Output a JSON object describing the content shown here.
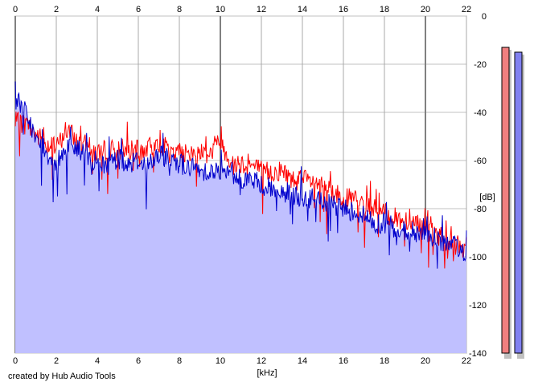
{
  "chart_data": {
    "type": "area",
    "xlabel": "[kHz]",
    "ylabel": "[dB]",
    "xlim": [
      0,
      22
    ],
    "ylim": [
      -140,
      0
    ],
    "x_ticks": [
      "0",
      "2",
      "4",
      "6",
      "8",
      "10",
      "12",
      "14",
      "16",
      "18",
      "20",
      "22"
    ],
    "y_ticks": [
      "0",
      "-20",
      "-40",
      "-60",
      "-80",
      "-100",
      "-120",
      "-140"
    ],
    "grid": true,
    "series": [
      {
        "color": "#ff0000",
        "x": [
          0,
          0.5,
          1,
          1.5,
          2,
          2.5,
          3,
          3.5,
          4,
          4.5,
          5,
          5.5,
          6,
          6.5,
          7,
          7.5,
          8,
          8.5,
          9,
          9.5,
          10,
          10.5,
          11,
          11.5,
          12,
          12.5,
          13,
          13.5,
          14,
          14.5,
          15,
          15.5,
          16,
          16.5,
          17,
          17.5,
          18,
          18.5,
          19,
          19.5,
          20,
          20.5,
          21,
          21.5,
          22
        ],
        "values": [
          -44,
          -45,
          -49,
          -53,
          -55,
          -47,
          -52,
          -54,
          -57,
          -55,
          -56,
          -56,
          -56,
          -55,
          -52,
          -56,
          -57,
          -58,
          -56,
          -57,
          -52,
          -60,
          -61,
          -62,
          -64,
          -65,
          -64,
          -68,
          -68,
          -69,
          -70,
          -73,
          -76,
          -76,
          -78,
          -80,
          -82,
          -84,
          -85,
          -85,
          -88,
          -90,
          -93,
          -95,
          -97
        ]
      },
      {
        "color": "#0000cc",
        "x": [
          0,
          0.5,
          1,
          1.5,
          2,
          2.5,
          3,
          3.5,
          4,
          4.5,
          5,
          5.5,
          6,
          6.5,
          7,
          7.5,
          8,
          8.5,
          9,
          9.5,
          10,
          10.5,
          11,
          11.5,
          12,
          12.5,
          13,
          13.5,
          14,
          14.5,
          15,
          15.5,
          16,
          16.5,
          17,
          17.5,
          18,
          18.5,
          19,
          19.5,
          20,
          20.5,
          21,
          21.5,
          22
        ],
        "values": [
          -34,
          -40,
          -52,
          -57,
          -60,
          -55,
          -55,
          -58,
          -61,
          -62,
          -59,
          -61,
          -60,
          -62,
          -58,
          -60,
          -61,
          -63,
          -64,
          -64,
          -65,
          -66,
          -67,
          -68,
          -70,
          -72,
          -73,
          -74,
          -75,
          -76,
          -77,
          -79,
          -80,
          -81,
          -83,
          -86,
          -86,
          -88,
          -89,
          -90,
          -91,
          -92,
          -95,
          -96,
          -98
        ]
      }
    ],
    "fill_color": "#c0c0ff",
    "level_meters": [
      {
        "color": "#f08080",
        "level_db": -13
      },
      {
        "color": "#8080f0",
        "level_db": -15
      }
    ]
  },
  "footer": {
    "credit": "created by Hub Audio Tools"
  }
}
